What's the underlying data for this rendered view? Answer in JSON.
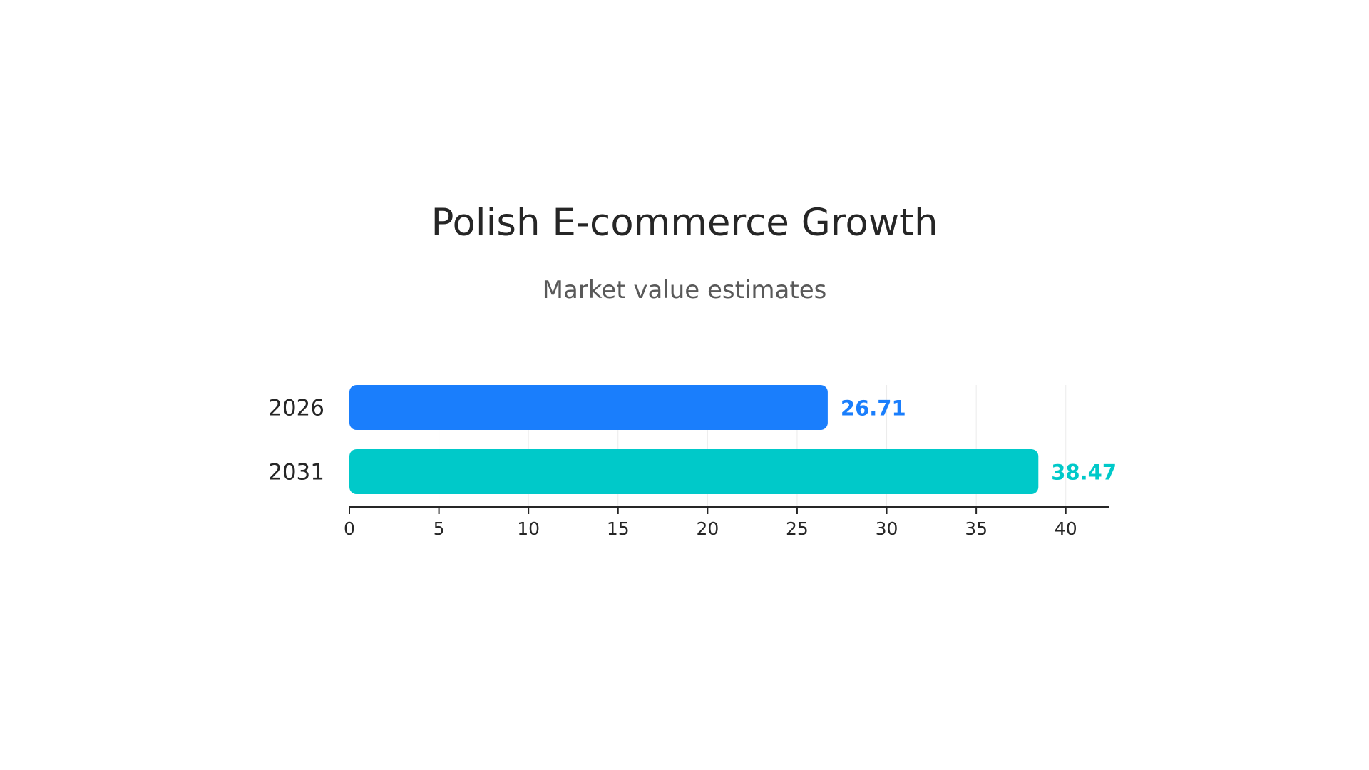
{
  "chart_data": {
    "type": "bar",
    "orientation": "horizontal",
    "title": "Polish E-commerce Growth",
    "subtitle": "Market value estimates",
    "categories": [
      "2026",
      "2031"
    ],
    "values": [
      26.71,
      38.47
    ],
    "value_labels": [
      "26.71",
      "38.47"
    ],
    "colors": [
      "#1a7efc",
      "#00c9c9"
    ],
    "xlim": [
      0,
      42.4
    ],
    "x_ticks": [
      0,
      5,
      10,
      15,
      20,
      25,
      30,
      35,
      40
    ],
    "x_tick_labels": [
      "0",
      "5",
      "10",
      "15",
      "20",
      "25",
      "30",
      "35",
      "40"
    ],
    "grid": true,
    "legend": "none"
  }
}
